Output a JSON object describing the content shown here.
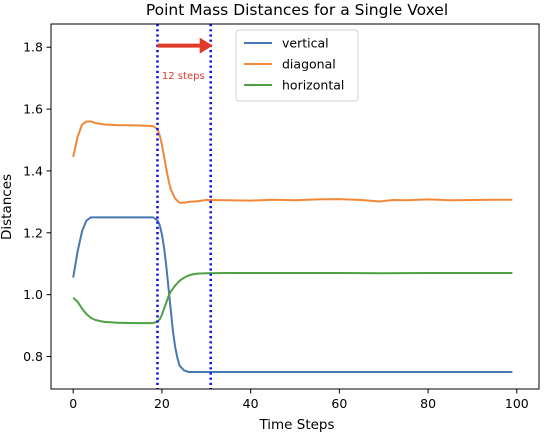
{
  "chart_data": {
    "type": "line",
    "title": "Point Mass Distances for a Single Voxel",
    "xlabel": "Time Steps",
    "ylabel": "Distances",
    "xlim": [
      -5,
      105
    ],
    "ylim": [
      0.695,
      1.875
    ],
    "xticks": [
      0,
      20,
      40,
      60,
      80,
      100
    ],
    "xtick_labels": [
      "0",
      "20",
      "40",
      "60",
      "80",
      "100"
    ],
    "yticks": [
      0.8,
      1.0,
      1.2,
      1.4,
      1.6,
      1.8
    ],
    "ytick_labels": [
      "0.8",
      "1.0",
      "1.2",
      "1.4",
      "1.6",
      "1.8"
    ],
    "grid": false,
    "legend_position": "top-center",
    "series": [
      {
        "name": "vertical",
        "color": "#4878b4",
        "x": [
          0,
          1,
          2,
          3,
          4,
          5,
          8,
          12,
          16,
          18,
          19,
          19.5,
          20,
          20.5,
          21,
          21.5,
          22,
          22.5,
          23,
          23.5,
          24,
          25,
          26,
          30,
          40,
          50,
          60,
          70,
          80,
          90,
          99
        ],
        "y": [
          1.055,
          1.14,
          1.205,
          1.24,
          1.25,
          1.25,
          1.25,
          1.25,
          1.25,
          1.25,
          1.24,
          1.225,
          1.195,
          1.15,
          1.09,
          1.02,
          0.95,
          0.88,
          0.83,
          0.795,
          0.77,
          0.755,
          0.75,
          0.75,
          0.75,
          0.75,
          0.75,
          0.75,
          0.75,
          0.75,
          0.75
        ]
      },
      {
        "name": "diagonal",
        "color": "#f0883a",
        "x": [
          0,
          1,
          2,
          3,
          4,
          5,
          7,
          10,
          15,
          18,
          19,
          19.5,
          20,
          20.5,
          21,
          21.5,
          22,
          23,
          24,
          25,
          26,
          28,
          30,
          35,
          40,
          45,
          50,
          55,
          60,
          65,
          69,
          72,
          75,
          80,
          85,
          90,
          95,
          99
        ],
        "y": [
          1.445,
          1.51,
          1.55,
          1.56,
          1.56,
          1.555,
          1.55,
          1.548,
          1.547,
          1.545,
          1.535,
          1.515,
          1.485,
          1.445,
          1.405,
          1.37,
          1.34,
          1.31,
          1.297,
          1.297,
          1.3,
          1.302,
          1.306,
          1.305,
          1.304,
          1.307,
          1.305,
          1.308,
          1.309,
          1.306,
          1.301,
          1.306,
          1.305,
          1.308,
          1.305,
          1.306,
          1.307,
          1.307
        ]
      },
      {
        "name": "horizontal",
        "color": "#4ea244",
        "x": [
          0,
          1,
          2,
          3,
          4,
          5,
          7,
          10,
          14,
          18,
          19,
          19.5,
          20,
          20.5,
          21,
          21.5,
          22,
          23,
          24,
          25,
          26,
          27,
          28,
          30,
          35,
          40,
          50,
          60,
          70,
          80,
          90,
          99
        ],
        "y": [
          0.99,
          0.977,
          0.955,
          0.937,
          0.925,
          0.918,
          0.912,
          0.909,
          0.908,
          0.908,
          0.913,
          0.92,
          0.935,
          0.955,
          0.975,
          0.995,
          1.01,
          1.03,
          1.045,
          1.055,
          1.062,
          1.066,
          1.068,
          1.069,
          1.07,
          1.07,
          1.07,
          1.07,
          1.069,
          1.07,
          1.07,
          1.07
        ]
      }
    ],
    "vlines": [
      {
        "x": 19,
        "color": "#1515e6",
        "style": "dotted"
      },
      {
        "x": 31,
        "color": "#1515e6",
        "style": "dotted"
      }
    ],
    "annotation": {
      "text": "12 steps",
      "color": "#e23a2a",
      "arrow_from": [
        19,
        1.805
      ],
      "arrow_to": [
        31,
        1.805
      ],
      "text_anchor": [
        20,
        1.71
      ]
    }
  }
}
